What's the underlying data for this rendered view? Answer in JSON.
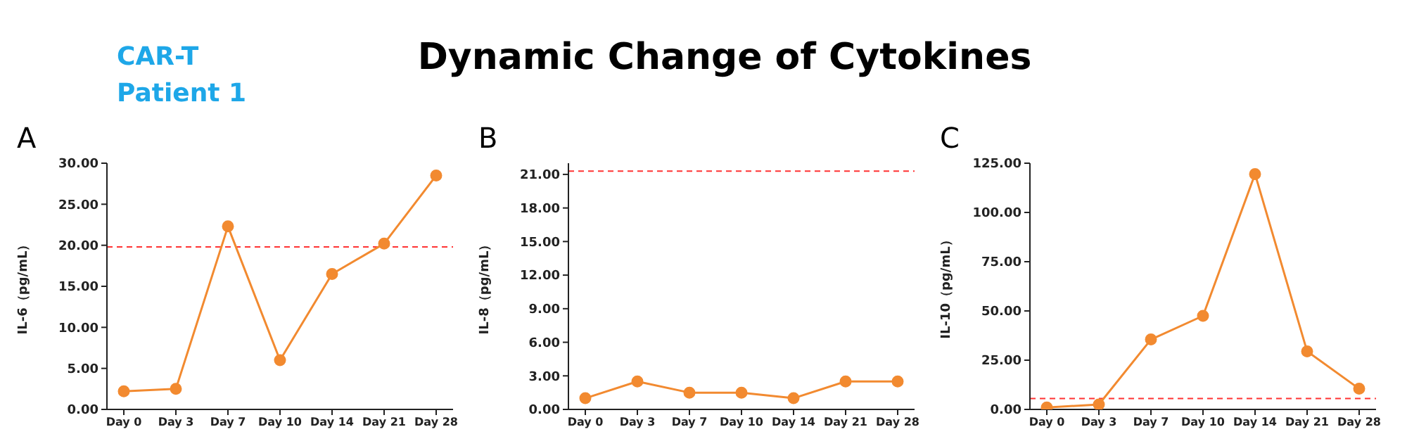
{
  "chart_data": [
    {
      "type": "line",
      "title": "A",
      "annotations": [
        "CAR-T",
        "Patient 1",
        "Dynamic Change of Cytokines"
      ],
      "ylabel": "IL-6（pg/mL）",
      "categories": [
        "Day 0",
        "Day 3",
        "Day 7",
        "Day 10",
        "Day 14",
        "Day 21",
        "Day 28"
      ],
      "series": [
        {
          "color": "#f28a30",
          "values": [
            2.2,
            2.5,
            22.3,
            6.0,
            16.5,
            20.2,
            28.5
          ]
        }
      ],
      "ylim": [
        0,
        30
      ],
      "yticks": [
        {
          "value": 0,
          "label": "0.00"
        },
        {
          "value": 5,
          "label": "5.00"
        },
        {
          "value": 10,
          "label": "10.00"
        },
        {
          "value": 15,
          "label": "15.00"
        },
        {
          "value": 20,
          "label": "20.00"
        },
        {
          "value": 25,
          "label": "25.00"
        },
        {
          "value": 30,
          "label": "30.00"
        }
      ],
      "ref_lines": [
        {
          "axis": "y",
          "value": 19.8,
          "color": "#ff3333",
          "line_style": "dashed"
        }
      ],
      "marker": "circle",
      "grid": false,
      "legend": false
    },
    {
      "type": "line",
      "title": "B",
      "ylabel": "IL-8（pg/mL）",
      "categories": [
        "Day 0",
        "Day 3",
        "Day 7",
        "Day 10",
        "Day 14",
        "Day 21",
        "Day 28"
      ],
      "series": [
        {
          "color": "#f28a30",
          "values": [
            1.0,
            2.5,
            1.5,
            1.5,
            1.0,
            2.5,
            2.5
          ]
        }
      ],
      "ylim": [
        0,
        22
      ],
      "yticks": [
        {
          "value": 0,
          "label": "0.00"
        },
        {
          "value": 3,
          "label": "3.00"
        },
        {
          "value": 6,
          "label": "6.00"
        },
        {
          "value": 9,
          "label": "9.00"
        },
        {
          "value": 12,
          "label": "12.00"
        },
        {
          "value": 15,
          "label": "15.00"
        },
        {
          "value": 18,
          "label": "18.00"
        },
        {
          "value": 21,
          "label": "21.00"
        }
      ],
      "ref_lines": [
        {
          "axis": "y",
          "value": 21.3,
          "color": "#ff3333",
          "line_style": "dashed"
        }
      ],
      "marker": "circle",
      "grid": false,
      "legend": false
    },
    {
      "type": "line",
      "title": "C",
      "ylabel": "IL-10（pg/mL）",
      "categories": [
        "Day 0",
        "Day 3",
        "Day 7",
        "Day 10",
        "Day 14",
        "Day 21",
        "Day 28"
      ],
      "series": [
        {
          "color": "#f28a30",
          "values": [
            1.0,
            2.5,
            35.5,
            47.5,
            119.5,
            29.5,
            10.5
          ]
        }
      ],
      "ylim": [
        0,
        125
      ],
      "yticks": [
        {
          "value": 0,
          "label": "0.00"
        },
        {
          "value": 25,
          "label": "25.00"
        },
        {
          "value": 50,
          "label": "50.00"
        },
        {
          "value": 75,
          "label": "75.00"
        },
        {
          "value": 100,
          "label": "100.00"
        },
        {
          "value": 125,
          "label": "125.00"
        }
      ],
      "ref_lines": [
        {
          "axis": "y",
          "value": 5.5,
          "color": "#ff3333",
          "line_style": "dashed"
        }
      ],
      "marker": "circle",
      "grid": false,
      "legend": false
    }
  ]
}
